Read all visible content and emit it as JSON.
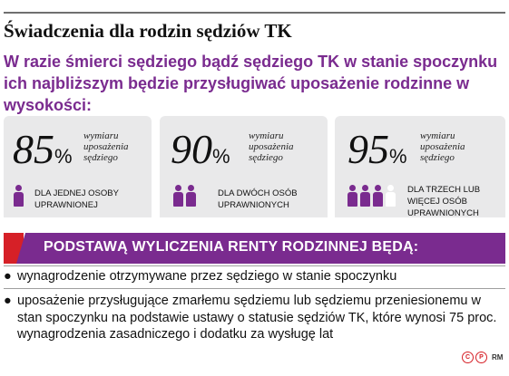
{
  "headline": "Świadczenia dla rodzin sędziów TK",
  "lede": "W razie śmierci sędziego bądź sędziego TK w stanie spoczynku ich najbliższym będzie przysługiwać uposażenie rodzinne w wysokości:",
  "cards": [
    {
      "percent": "85",
      "sign": "%",
      "desc_lines": [
        "wymiaru",
        "uposażenia",
        "sędziego"
      ],
      "who_lines": [
        "DLA JEDNEJ OSOBY",
        "UPRAWNIONEJ"
      ],
      "persons_filled": 1,
      "persons_empty": 0
    },
    {
      "percent": "90",
      "sign": "%",
      "desc_lines": [
        "wymiaru",
        "uposażenia",
        "sędziego"
      ],
      "who_lines": [
        "DLA DWÓCH OSÓB",
        "UPRAWNIONYCH"
      ],
      "persons_filled": 2,
      "persons_empty": 0
    },
    {
      "percent": "95",
      "sign": "%",
      "desc_lines": [
        "wymiaru",
        "uposażenia",
        "sędziego"
      ],
      "who_lines": [
        "DLA TRZECH LUB",
        "WIĘCEJ OSÓB",
        "UPRAWNIONYCH"
      ],
      "persons_filled": 3,
      "persons_empty": 1
    }
  ],
  "banner": "PODSTAWĄ WYLICZENIA RENTY RODZINNEJ BĘDĄ:",
  "bullets": [
    {
      "dot": "●",
      "text": "wynagrodzenie otrzymywane przez sędziego w stanie spoczynku"
    },
    {
      "dot": "●",
      "text": "uposażenie przysługujące zmarłemu sędziemu lub sędziemu przeniesionemu w stan spoczynku na podstawie ustawy o statusie sędziów TK, które wynosi 75 proc. wynagrodzenia zasadniczego i dodatku za wysługę lat"
    }
  ],
  "credit": {
    "c_mark": "C",
    "p_mark": "P",
    "author": "RM"
  },
  "colors": {
    "accent": "#7a2b8f",
    "red": "#d62027",
    "card_bg": "#e9e9ea"
  }
}
